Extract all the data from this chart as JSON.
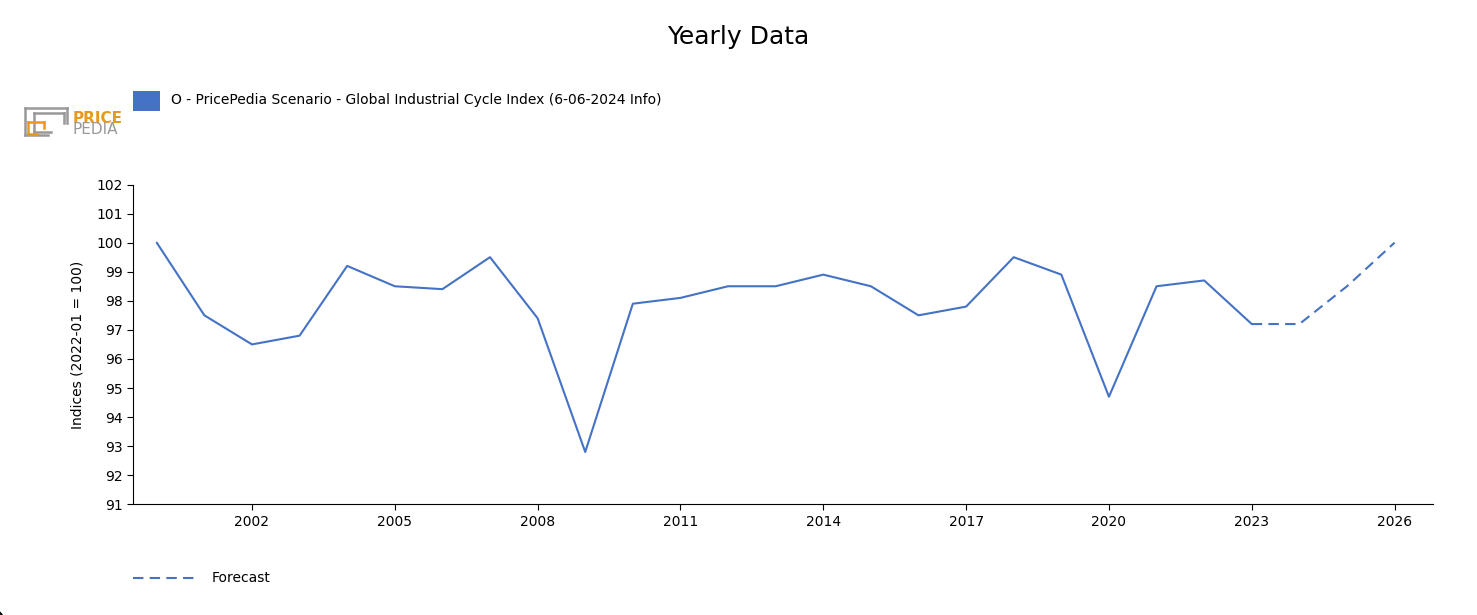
{
  "title": "Yearly Data",
  "ylabel": "Indices (2022-01 = 100)",
  "legend_label": "O - PricePedia Scenario - Global Industrial Cycle Index (6-06-2024 Info)",
  "legend_color": "#4472C4",
  "line_color": "#4472C4",
  "ylim": [
    91,
    102
  ],
  "yticks": [
    91,
    92,
    93,
    94,
    95,
    96,
    97,
    98,
    99,
    100,
    101,
    102
  ],
  "solid_years": [
    2000,
    2001,
    2002,
    2003,
    2004,
    2005,
    2006,
    2007,
    2008,
    2009,
    2010,
    2011,
    2012,
    2013,
    2014,
    2015,
    2016,
    2017,
    2018,
    2019,
    2020,
    2021,
    2022,
    2023
  ],
  "solid_values": [
    100.0,
    97.5,
    96.5,
    96.8,
    99.2,
    98.5,
    98.4,
    99.5,
    97.4,
    92.8,
    97.9,
    98.1,
    98.5,
    98.5,
    98.9,
    98.5,
    97.5,
    97.8,
    99.5,
    98.9,
    94.7,
    98.5,
    98.7,
    97.2
  ],
  "dashed_years": [
    2023,
    2024,
    2025,
    2026
  ],
  "dashed_values": [
    97.2,
    97.2,
    98.5,
    100.0
  ],
  "xticks": [
    2002,
    2005,
    2008,
    2011,
    2014,
    2017,
    2020,
    2023,
    2026
  ],
  "xtick_labels": [
    "2002",
    "2005",
    "2008",
    "2011",
    "2014",
    "2017",
    "2020",
    "2023",
    "2026"
  ],
  "background_color": "#ffffff",
  "forecast_label": "Forecast",
  "logo_price_color": "#E8981C",
  "logo_pedia_color": "#999999",
  "logo_box_color": "#999999"
}
